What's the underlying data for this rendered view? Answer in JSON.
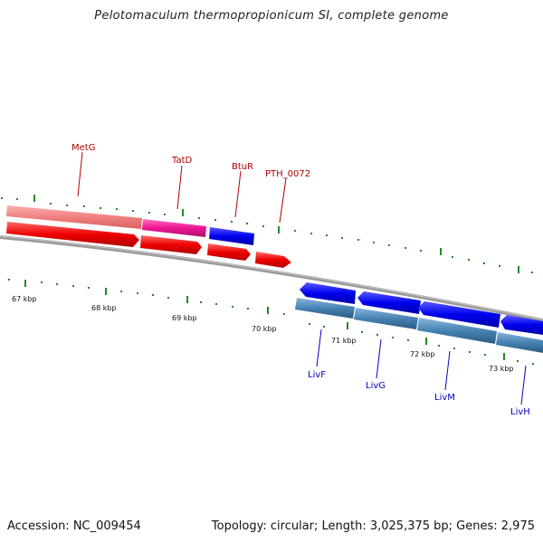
{
  "title": "Pelotomaculum thermopropionicum SI, complete genome",
  "footer": {
    "accession": "Accession: NC_009454",
    "topology": "Topology: circular; Length: 3,025,375 bp; Genes: 2,975"
  },
  "ticks": {
    "k67": "67 kbp",
    "k68": "68 kbp",
    "k69": "69 kbp",
    "k70": "70 kbp",
    "k71": "71 kbp",
    "k72": "72 kbp",
    "k73": "73 kbp"
  },
  "genes": {
    "metg": "MetG",
    "tatd": "TatD",
    "btur": "BtuR",
    "pth0072": "PTH_0072",
    "livf": "LivF",
    "livg": "LivG",
    "livm": "LivM",
    "livh": "LivH"
  },
  "colors": {
    "forward_cds": "#ee0000",
    "cog_pink": "#f08080",
    "cog_magenta": "#ee1493",
    "reverse_cds": "#0000ee",
    "reverse_cog": "#4682b4",
    "backbone": "#808080",
    "tick": "#006400"
  }
}
